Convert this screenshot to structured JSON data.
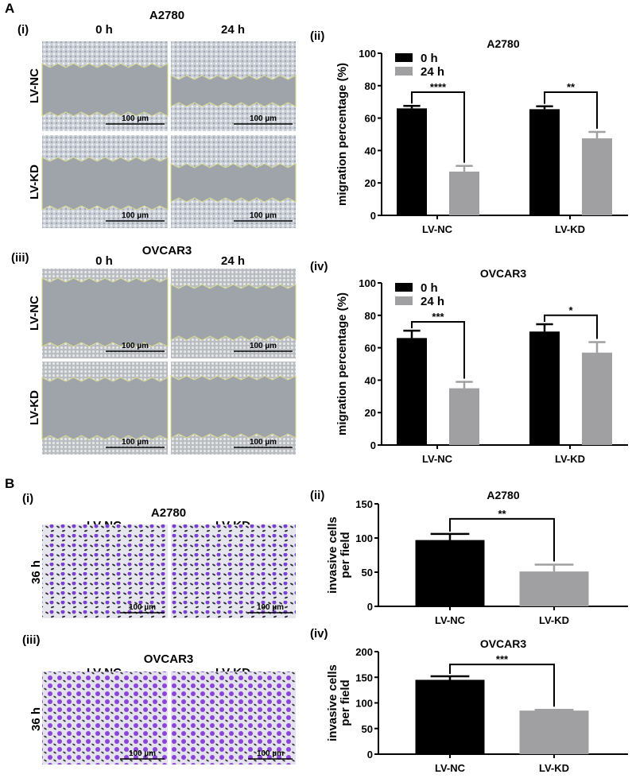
{
  "panel_A": {
    "letter": "A",
    "i": {
      "label": "(i)",
      "title": "A2780",
      "columns": [
        "0 h",
        "24 h"
      ],
      "rows": [
        "LV-NC",
        "LV-KD"
      ],
      "scale_bar": "100 µm"
    },
    "iii": {
      "label": "(iii)",
      "title": "OVCAR3",
      "columns": [
        "0 h",
        "24 h"
      ],
      "rows": [
        "LV-NC",
        "LV-KD"
      ],
      "scale_bar": "100 µm"
    },
    "ii_label": "(ii)",
    "iv_label": "(iv)"
  },
  "panel_B": {
    "letter": "B",
    "i": {
      "label": "(i)",
      "title": "A2780",
      "columns": [
        "LV-NC",
        "LV-KD"
      ],
      "rows": [
        "36 h"
      ],
      "scale_bar": "100 µm"
    },
    "iii": {
      "label": "(iii)",
      "title": "OVCAR3",
      "columns": [
        "LV-NC",
        "LV-KD"
      ],
      "rows": [
        "36 h"
      ],
      "scale_bar": "100 µm"
    },
    "ii_label": "(ii)",
    "iv_label": "(iv)"
  },
  "colors": {
    "black_bar": "#000000",
    "gray_bar": "#a0a0a3",
    "wound_gap": "#9fa4ab",
    "cells": "#c9ced6",
    "wound_edge": "#d8d98a",
    "crystal_violet": "#7a3fd0"
  },
  "chart_data": [
    {
      "panel": "A(ii)",
      "type": "bar",
      "title": "A2780",
      "xlabel": "",
      "ylabel": "migration percentage (%)",
      "categories": [
        "LV-NC",
        "LV-KD"
      ],
      "ylim": [
        0,
        100
      ],
      "yticks": [
        0,
        20,
        40,
        60,
        80,
        100
      ],
      "grid": false,
      "legend": "top-left",
      "series": [
        {
          "name": "0 h",
          "values": [
            66,
            65.5
          ],
          "errors": [
            1.5,
            1.8
          ],
          "color": "#000000"
        },
        {
          "name": "24 h",
          "values": [
            27,
            47.5
          ],
          "errors": [
            3.5,
            4
          ],
          "color": "#a0a0a3"
        }
      ],
      "significance": [
        {
          "category": "LV-NC",
          "label": "****",
          "level": 76
        },
        {
          "category": "LV-KD",
          "label": "**",
          "level": 76
        }
      ]
    },
    {
      "panel": "A(iv)",
      "type": "bar",
      "title": "OVCAR3",
      "xlabel": "",
      "ylabel": "migration percentage (%)",
      "categories": [
        "LV-NC",
        "LV-KD"
      ],
      "ylim": [
        0,
        100
      ],
      "yticks": [
        0,
        20,
        40,
        60,
        80,
        100
      ],
      "grid": false,
      "legend": "top-left",
      "series": [
        {
          "name": "0 h",
          "values": [
            66,
            70
          ],
          "errors": [
            4.5,
            4.5
          ],
          "color": "#000000"
        },
        {
          "name": "24 h",
          "values": [
            35,
            57
          ],
          "errors": [
            4,
            6.5
          ],
          "color": "#a0a0a3"
        }
      ],
      "significance": [
        {
          "category": "LV-NC",
          "label": "***",
          "level": 76
        },
        {
          "category": "LV-KD",
          "label": "*",
          "level": 80
        }
      ]
    },
    {
      "panel": "B(ii)",
      "type": "bar",
      "title": "A2780",
      "xlabel": "",
      "ylabel": [
        "invasive cells",
        "per field"
      ],
      "categories": [
        "LV-NC",
        "LV-KD"
      ],
      "ylim": [
        0,
        150
      ],
      "yticks": [
        0,
        50,
        100,
        150
      ],
      "grid": false,
      "series": [
        {
          "values": [
            97,
            51
          ],
          "errors": [
            9,
            10
          ],
          "colors": [
            "#000000",
            "#a0a0a3"
          ]
        }
      ],
      "significance": [
        {
          "between": [
            "LV-NC",
            "LV-KD"
          ],
          "label": "**",
          "level": 128
        }
      ]
    },
    {
      "panel": "B(iv)",
      "type": "bar",
      "title": "OVCAR3",
      "xlabel": "",
      "ylabel": [
        "invasive cells",
        "per field"
      ],
      "categories": [
        "LV-NC",
        "LV-KD"
      ],
      "ylim": [
        0,
        200
      ],
      "yticks": [
        0,
        50,
        100,
        150,
        200
      ],
      "grid": false,
      "series": [
        {
          "values": [
            145,
            85
          ],
          "errors": [
            7,
            1.5
          ],
          "colors": [
            "#000000",
            "#a0a0a3"
          ]
        }
      ],
      "significance": [
        {
          "between": [
            "LV-NC",
            "LV-KD"
          ],
          "label": "***",
          "level": 175
        }
      ]
    }
  ]
}
